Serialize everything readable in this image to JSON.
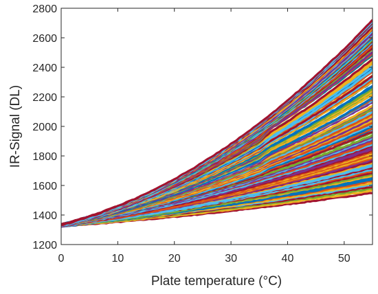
{
  "chart_data": {
    "type": "line",
    "title": "",
    "xlabel": "Plate temperature (°C)",
    "ylabel": "IR-Signal (DL)",
    "xlim": [
      0,
      55
    ],
    "ylim": [
      1200,
      2800
    ],
    "x_ticks": [
      0,
      10,
      20,
      30,
      40,
      50
    ],
    "y_ticks": [
      1200,
      1400,
      1600,
      1800,
      2000,
      2200,
      2400,
      2600,
      2800
    ],
    "grid": false,
    "legend": "none",
    "series_description_count": 120,
    "series_envelope": {
      "start": {
        "x": 0,
        "y": 1330
      },
      "upper_end": {
        "x": 55,
        "y": 2720
      },
      "lower_end": {
        "x": 55,
        "y": 1550
      },
      "discontinuity_x": 35
    },
    "colors": [
      "#0072BD",
      "#D95319",
      "#EDB120",
      "#7E2F8E",
      "#77AC30",
      "#4DBEEE",
      "#A2142F"
    ]
  }
}
